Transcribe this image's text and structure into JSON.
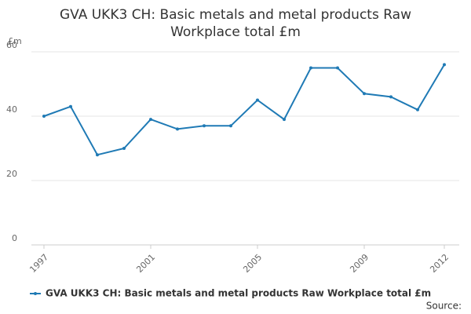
{
  "chart_data": {
    "type": "line",
    "title": "GVA UKK3 CH: Basic metals and metal products Raw Workplace total £m",
    "y_label": "£m",
    "x": [
      1997,
      1998,
      1999,
      2000,
      2001,
      2002,
      2003,
      2004,
      2005,
      2006,
      2007,
      2008,
      2009,
      2010,
      2011,
      2012
    ],
    "series": [
      {
        "name": "GVA UKK3 CH: Basic metals and metal products Raw Workplace total £m",
        "color": "#1f7ab5",
        "values": [
          40,
          43,
          28,
          30,
          39,
          36,
          37,
          37,
          45,
          39,
          55,
          55,
          47,
          46,
          42,
          56
        ]
      }
    ],
    "xlim": [
      1997,
      2012
    ],
    "xticks": [
      1997,
      2001,
      2005,
      2009,
      2012
    ],
    "ylim": [
      0,
      60
    ],
    "yticks": [
      0,
      20,
      40,
      60
    ],
    "grid": true,
    "legend": "bottom",
    "source": "Source:"
  }
}
